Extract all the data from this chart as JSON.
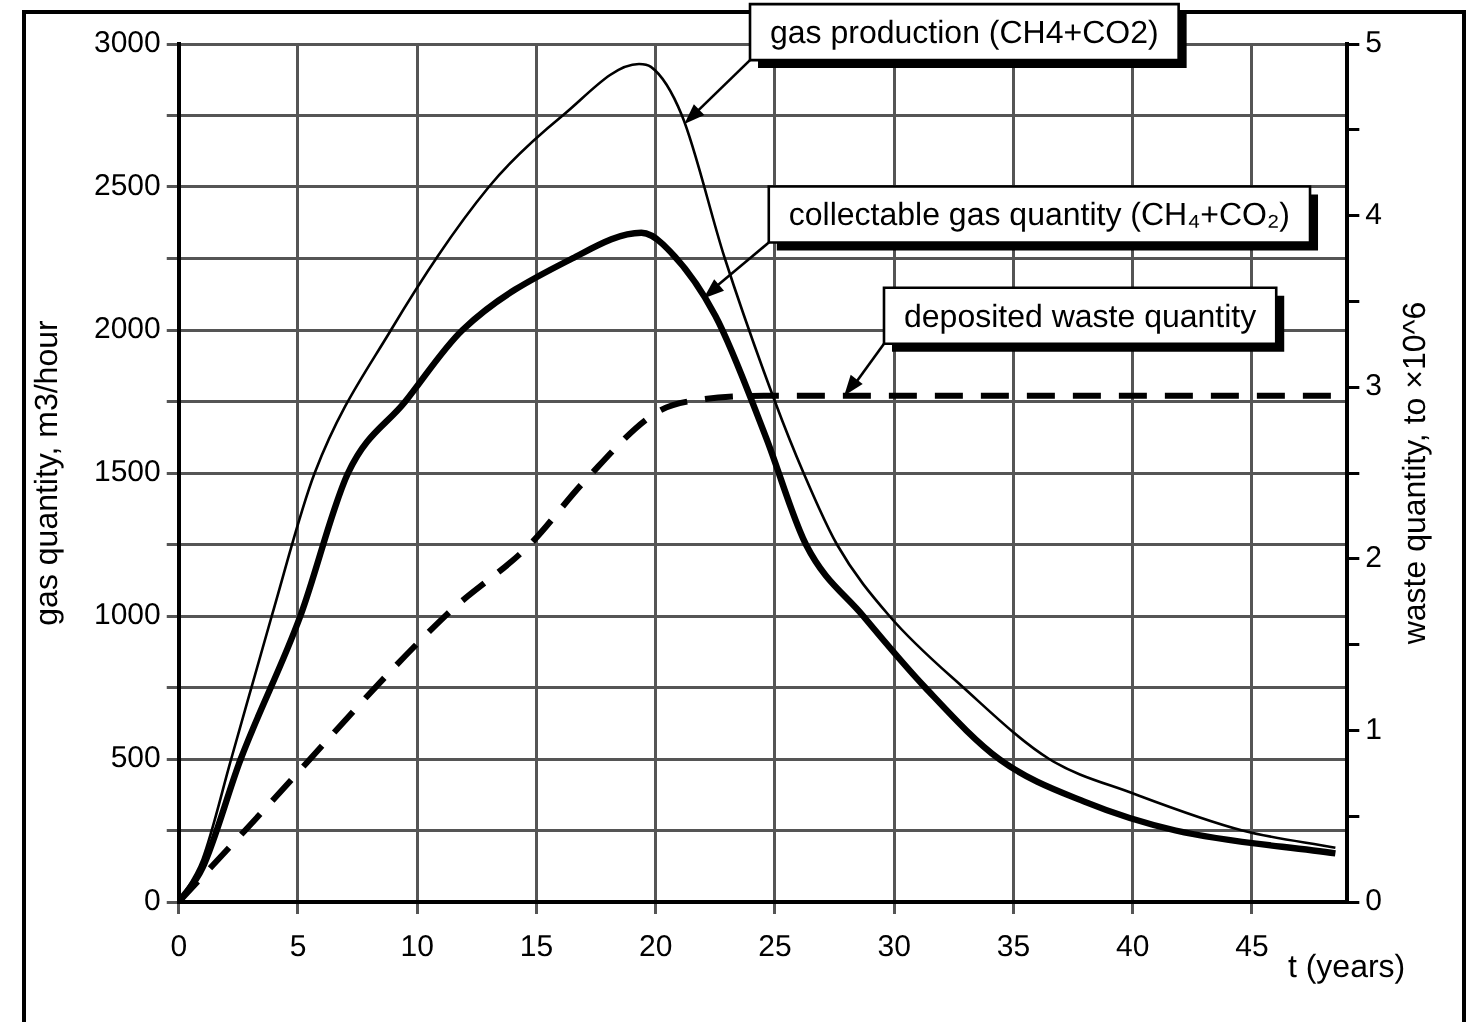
{
  "chart_data": {
    "type": "line",
    "xlabel": "t (years)",
    "ylabel": "gas quantity, m3/hour",
    "y2label": "waste quantity, to ×10^6",
    "xlim": [
      0,
      49
    ],
    "xticks": [
      0,
      5,
      10,
      15,
      20,
      25,
      30,
      35,
      40,
      45
    ],
    "ylim": [
      0,
      3000
    ],
    "yticks": [
      0,
      {
        "value": 250,
        "label": null
      },
      500,
      {
        "value": 750,
        "label": null
      },
      1000,
      {
        "value": 1250,
        "label": null
      },
      1500,
      {
        "value": 1750,
        "label": null
      },
      2000,
      {
        "value": 2250,
        "label": null
      },
      2500,
      {
        "value": 2750,
        "label": null
      },
      3000
    ],
    "y2lim": [
      0,
      5
    ],
    "y2ticks": [
      0,
      {
        "value": 0.5,
        "label": null
      },
      1,
      {
        "value": 1.5,
        "label": null
      },
      2,
      {
        "value": 2.5,
        "label": null
      },
      3,
      {
        "value": 3.5,
        "label": null
      },
      4,
      {
        "value": 4.5,
        "label": null
      },
      5
    ],
    "grid": true,
    "legend": false,
    "marker": "none",
    "series": [
      {
        "color": "#000000",
        "x": [
          0,
          1,
          2.2,
          3.9,
          5.7,
          8.9,
          13,
          16.1,
          19.3,
          19.8,
          21.1,
          22.9,
          25,
          26.2,
          27.6,
          29.8,
          32.9,
          36.5,
          40,
          44.6,
          48.5
        ],
        "values": [
          0,
          150,
          500,
          1000,
          1500,
          2000,
          2500,
          2750,
          2930,
          2920,
          2750,
          2250,
          1750,
          1500,
          1250,
          1000,
          750,
          500,
          380,
          250,
          190
        ]
      },
      {
        "color": "#000000",
        "x": [
          0,
          1,
          2.6,
          5.1,
          7.1,
          9.5,
          11.9,
          16.5,
          19.4,
          20.3,
          22.5,
          24.6,
          26.3,
          28.7,
          31.3,
          34.4,
          38,
          41.8,
          48.5
        ],
        "values": [
          0,
          120,
          500,
          1000,
          1500,
          1750,
          2000,
          2250,
          2340,
          2300,
          2050,
          1630,
          1250,
          1000,
          750,
          500,
          350,
          250,
          170
        ]
      },
      {
        "color": "#000000",
        "axis": "y2",
        "line_style": "dashed",
        "x": [
          0,
          2.8,
          11.2,
          14.7,
          17,
          20,
          22,
          25,
          48.5
        ],
        "values": [
          0,
          0.42,
          1.67,
          2.08,
          2.45,
          2.85,
          2.93,
          2.95,
          2.95
        ]
      }
    ],
    "annotations": [
      {
        "text": "gas production (CH4+CO2)",
        "x": 21.2,
        "y": 2720
      },
      {
        "text": "collectable gas quantity (CH₄+CO₂)",
        "x": 22,
        "y": 2110
      },
      {
        "text": "deposited waste quantity",
        "x": 27.9,
        "y": 1770
      }
    ]
  }
}
